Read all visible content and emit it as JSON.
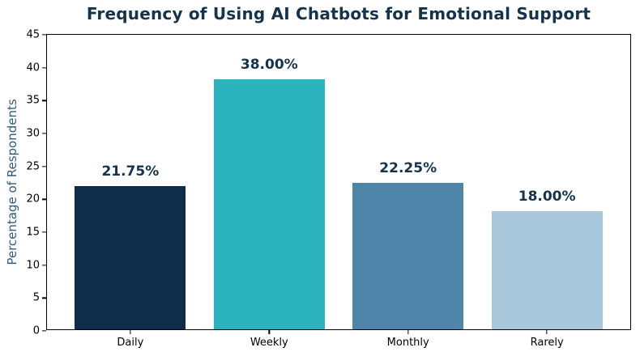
{
  "chart_data": {
    "type": "bar",
    "title": "Frequency of Using AI Chatbots for Emotional Support",
    "xlabel": "",
    "ylabel": "Percentage of Respondents",
    "categories": [
      "Daily",
      "Weekly",
      "Monthly",
      "Rarely"
    ],
    "values": [
      21.75,
      38.0,
      22.25,
      18.0
    ],
    "value_labels": [
      "21.75%",
      "38.00%",
      "22.25%",
      "18.00%"
    ],
    "bar_colors": [
      "#0E2D4A",
      "#2BB3BE",
      "#4E85A8",
      "#A9C7DB"
    ],
    "ylim": [
      0,
      45
    ],
    "yticks": [
      0,
      5,
      10,
      15,
      20,
      25,
      30,
      35,
      40,
      45
    ],
    "grid": false,
    "legend": "none",
    "bar_width_fraction": 0.8,
    "x_edge_padding": 0.6
  },
  "colors": {
    "title": "#14344E",
    "value_label": "#14344E",
    "ylabel": "#2B5C80",
    "axis": "#000000",
    "tick_label": "#000000",
    "background": "#FFFFFF"
  }
}
